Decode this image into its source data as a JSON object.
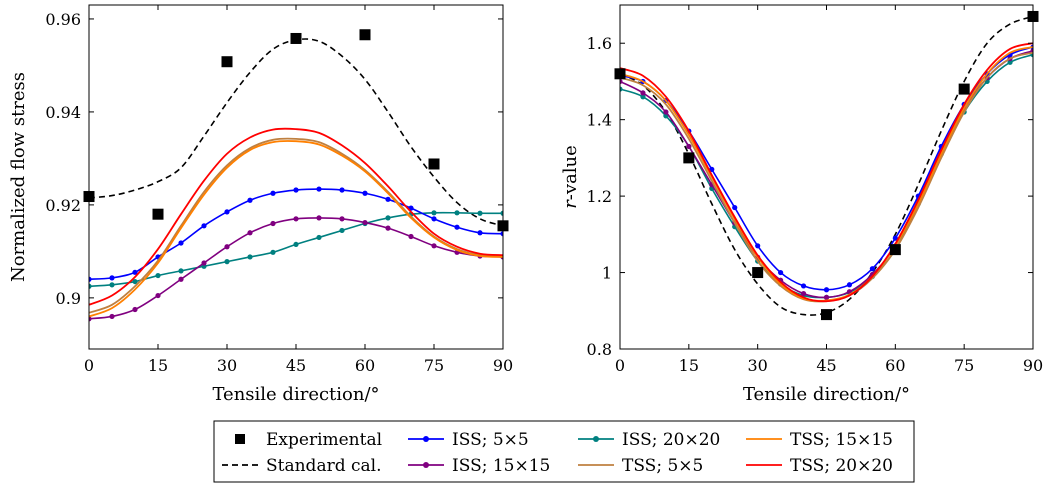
{
  "legend": {
    "rows": [
      [
        "Experimental",
        "ISS; 5×5",
        "ISS; 20×20",
        "TSS; 15×15"
      ],
      [
        "Standard cal.",
        "ISS; 15×15",
        "TSS; 5×5",
        "TSS; 20×20"
      ]
    ]
  },
  "series_styles": {
    "Experimental": {
      "color": "#000000",
      "kind": "square-marker"
    },
    "Standard cal.": {
      "color": "#000000",
      "kind": "dashed-line"
    },
    "ISS; 5×5": {
      "color": "#0000ff",
      "kind": "line-dots"
    },
    "ISS; 15×15": {
      "color": "#800080",
      "kind": "line-dots"
    },
    "ISS; 20×20": {
      "color": "#008080",
      "kind": "line-dots"
    },
    "TSS; 5×5": {
      "color": "#bf8040",
      "kind": "line"
    },
    "TSS; 15×15": {
      "color": "#ff8000",
      "kind": "line"
    },
    "TSS; 20×20": {
      "color": "#ff0000",
      "kind": "line"
    }
  },
  "chart_data": [
    {
      "type": "line",
      "title": "",
      "xlabel": "Tensile direction/°",
      "ylabel": "Normalized flow stress",
      "xlim": [
        0,
        90
      ],
      "ylim": [
        0.889,
        0.963
      ],
      "xticks": [
        0,
        15,
        30,
        45,
        60,
        75,
        90
      ],
      "yticks": [
        0.9,
        0.92,
        0.94,
        0.96
      ],
      "ytick_labels": [
        "0.9",
        "0.92",
        "0.94",
        "0.96"
      ],
      "grid": false,
      "series": [
        {
          "name": "Experimental",
          "x": [
            0,
            15,
            30,
            45,
            60,
            75,
            90
          ],
          "y": [
            0.9218,
            0.918,
            0.9508,
            0.9558,
            0.9566,
            0.9288,
            0.9155
          ]
        },
        {
          "name": "Standard cal.",
          "x": [
            0,
            5,
            10,
            15,
            20,
            25,
            30,
            35,
            40,
            45,
            50,
            55,
            60,
            65,
            70,
            75,
            80,
            85,
            90
          ],
          "y": [
            0.9215,
            0.922,
            0.9232,
            0.925,
            0.928,
            0.9348,
            0.942,
            0.9485,
            0.9535,
            0.9555,
            0.9552,
            0.952,
            0.947,
            0.94,
            0.9325,
            0.926,
            0.9205,
            0.917,
            0.9155
          ]
        },
        {
          "name": "ISS; 5×5",
          "x": [
            0,
            5,
            10,
            15,
            20,
            25,
            30,
            35,
            40,
            45,
            50,
            55,
            60,
            65,
            70,
            75,
            80,
            85,
            90
          ],
          "y": [
            0.904,
            0.9043,
            0.9055,
            0.9088,
            0.9118,
            0.9155,
            0.9185,
            0.921,
            0.9225,
            0.9232,
            0.9234,
            0.9232,
            0.9225,
            0.9212,
            0.9193,
            0.917,
            0.9152,
            0.914,
            0.9138
          ]
        },
        {
          "name": "ISS; 15×15",
          "x": [
            0,
            5,
            10,
            15,
            20,
            25,
            30,
            35,
            40,
            45,
            50,
            55,
            60,
            65,
            70,
            75,
            80,
            85,
            90
          ],
          "y": [
            0.8955,
            0.896,
            0.8975,
            0.9005,
            0.904,
            0.9075,
            0.911,
            0.914,
            0.916,
            0.917,
            0.9172,
            0.917,
            0.9162,
            0.915,
            0.9132,
            0.9112,
            0.9098,
            0.909,
            0.9088
          ]
        },
        {
          "name": "ISS; 20×20",
          "x": [
            0,
            5,
            10,
            15,
            20,
            25,
            30,
            35,
            40,
            45,
            50,
            55,
            60,
            65,
            70,
            75,
            80,
            85,
            90
          ],
          "y": [
            0.9025,
            0.9028,
            0.9035,
            0.9048,
            0.9058,
            0.9068,
            0.9078,
            0.9088,
            0.9098,
            0.9115,
            0.913,
            0.9145,
            0.916,
            0.9172,
            0.918,
            0.9183,
            0.9183,
            0.9182,
            0.9182
          ]
        },
        {
          "name": "TSS; 5×5",
          "x": [
            0,
            5,
            10,
            15,
            20,
            25,
            30,
            35,
            40,
            45,
            50,
            55,
            60,
            65,
            70,
            75,
            80,
            85,
            90
          ],
          "y": [
            0.8968,
            0.8985,
            0.9025,
            0.908,
            0.9155,
            0.9228,
            0.9285,
            0.9322,
            0.934,
            0.9342,
            0.9335,
            0.931,
            0.9275,
            0.9228,
            0.9175,
            0.9132,
            0.9105,
            0.9092,
            0.909
          ]
        },
        {
          "name": "TSS; 15×15",
          "x": [
            0,
            5,
            10,
            15,
            20,
            25,
            30,
            35,
            40,
            45,
            50,
            55,
            60,
            65,
            70,
            75,
            80,
            85,
            90
          ],
          "y": [
            0.896,
            0.8978,
            0.9018,
            0.9075,
            0.915,
            0.9222,
            0.928,
            0.9318,
            0.9335,
            0.9337,
            0.933,
            0.9306,
            0.9272,
            0.9225,
            0.9172,
            0.913,
            0.9103,
            0.909,
            0.9088
          ]
        },
        {
          "name": "TSS; 20×20",
          "x": [
            0,
            5,
            10,
            15,
            20,
            25,
            30,
            35,
            40,
            45,
            50,
            55,
            60,
            65,
            70,
            75,
            80,
            85,
            90
          ],
          "y": [
            0.8985,
            0.9005,
            0.9045,
            0.9105,
            0.918,
            0.9252,
            0.931,
            0.9345,
            0.9362,
            0.9363,
            0.9355,
            0.9328,
            0.929,
            0.924,
            0.9185,
            0.9138,
            0.911,
            0.9095,
            0.9092
          ]
        }
      ]
    },
    {
      "type": "line",
      "title": "",
      "xlabel": "Tensile direction/°",
      "ylabel": "r-value",
      "xlim": [
        0,
        90
      ],
      "ylim": [
        0.8,
        1.7
      ],
      "xticks": [
        0,
        15,
        30,
        45,
        60,
        75,
        90
      ],
      "yticks": [
        0.8,
        1.0,
        1.2,
        1.4,
        1.6
      ],
      "ytick_labels": [
        "0.8",
        "1",
        "1.2",
        "1.4",
        "1.6"
      ],
      "grid": false,
      "series": [
        {
          "name": "Experimental",
          "x": [
            0,
            15,
            30,
            45,
            60,
            75,
            90
          ],
          "y": [
            1.52,
            1.3,
            1.0,
            0.89,
            1.06,
            1.48,
            1.67
          ]
        },
        {
          "name": "Standard cal.",
          "x": [
            0,
            5,
            10,
            15,
            20,
            25,
            30,
            35,
            40,
            45,
            50,
            55,
            60,
            65,
            70,
            75,
            80,
            85,
            90
          ],
          "y": [
            1.52,
            1.49,
            1.42,
            1.31,
            1.18,
            1.06,
            0.97,
            0.91,
            0.89,
            0.895,
            0.93,
            1.0,
            1.1,
            1.23,
            1.37,
            1.5,
            1.6,
            1.65,
            1.67
          ]
        },
        {
          "name": "ISS; 5×5",
          "x": [
            0,
            5,
            10,
            15,
            20,
            25,
            30,
            35,
            40,
            45,
            50,
            55,
            60,
            65,
            70,
            75,
            80,
            85,
            90
          ],
          "y": [
            1.515,
            1.5,
            1.45,
            1.37,
            1.27,
            1.17,
            1.07,
            1.0,
            0.965,
            0.955,
            0.968,
            1.01,
            1.09,
            1.2,
            1.33,
            1.44,
            1.52,
            1.57,
            1.59
          ]
        },
        {
          "name": "ISS; 15×15",
          "x": [
            0,
            5,
            10,
            15,
            20,
            25,
            30,
            35,
            40,
            45,
            50,
            55,
            60,
            65,
            70,
            75,
            80,
            85,
            90
          ],
          "y": [
            1.5,
            1.47,
            1.42,
            1.33,
            1.23,
            1.13,
            1.04,
            0.98,
            0.945,
            0.935,
            0.95,
            0.995,
            1.07,
            1.19,
            1.32,
            1.43,
            1.51,
            1.56,
            1.58
          ]
        },
        {
          "name": "ISS; 20×20",
          "x": [
            0,
            5,
            10,
            15,
            20,
            25,
            30,
            35,
            40,
            45,
            50,
            55,
            60,
            65,
            70,
            75,
            80,
            85,
            90
          ],
          "y": [
            1.48,
            1.46,
            1.41,
            1.33,
            1.22,
            1.12,
            1.03,
            0.97,
            0.94,
            0.935,
            0.948,
            0.99,
            1.06,
            1.18,
            1.31,
            1.42,
            1.5,
            1.55,
            1.57
          ]
        },
        {
          "name": "TSS; 5×5",
          "x": [
            0,
            5,
            10,
            15,
            20,
            25,
            30,
            35,
            40,
            45,
            50,
            55,
            60,
            65,
            70,
            75,
            80,
            85,
            90
          ],
          "y": [
            1.51,
            1.49,
            1.44,
            1.35,
            1.24,
            1.13,
            1.03,
            0.965,
            0.93,
            0.925,
            0.94,
            0.985,
            1.06,
            1.17,
            1.3,
            1.42,
            1.51,
            1.56,
            1.575
          ]
        },
        {
          "name": "TSS; 15×15",
          "x": [
            0,
            5,
            10,
            15,
            20,
            25,
            30,
            35,
            40,
            45,
            50,
            55,
            60,
            65,
            70,
            75,
            80,
            85,
            90
          ],
          "y": [
            1.52,
            1.5,
            1.45,
            1.36,
            1.25,
            1.14,
            1.04,
            0.97,
            0.932,
            0.927,
            0.942,
            0.99,
            1.07,
            1.18,
            1.31,
            1.43,
            1.52,
            1.575,
            1.59
          ]
        },
        {
          "name": "TSS; 20×20",
          "x": [
            0,
            5,
            10,
            15,
            20,
            25,
            30,
            35,
            40,
            45,
            50,
            55,
            60,
            65,
            70,
            75,
            80,
            85,
            90
          ],
          "y": [
            1.535,
            1.515,
            1.46,
            1.37,
            1.255,
            1.145,
            1.045,
            0.975,
            0.935,
            0.925,
            0.94,
            0.99,
            1.075,
            1.19,
            1.32,
            1.44,
            1.53,
            1.585,
            1.6
          ]
        }
      ]
    }
  ]
}
